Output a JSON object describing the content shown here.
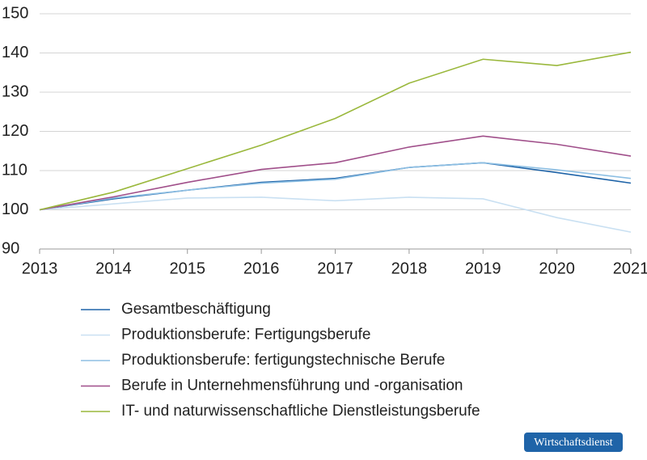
{
  "chart_data": {
    "type": "line",
    "x": [
      2013,
      2014,
      2015,
      2016,
      2017,
      2018,
      2019,
      2020,
      2021
    ],
    "xlim": [
      2013,
      2021
    ],
    "xticks": [
      2013,
      2014,
      2015,
      2016,
      2017,
      2018,
      2019,
      2020,
      2021
    ],
    "ylim": [
      90,
      150
    ],
    "yticks": [
      90,
      100,
      110,
      120,
      130,
      140,
      150
    ],
    "grid": true,
    "series": [
      {
        "name": "Gesamtbeschäftigung",
        "color": "#1f64a8",
        "values": [
          100,
          102.8,
          105,
          107,
          108,
          110.8,
          112,
          109.5,
          106.8
        ]
      },
      {
        "name": "Produktionsberufe: Fertigungsberufe",
        "color": "#c9e0f2",
        "values": [
          100,
          101.5,
          103,
          103.2,
          102.3,
          103.2,
          102.8,
          98,
          94.3
        ]
      },
      {
        "name": "Produktionsberufe: fertigungstechnische Berufe",
        "color": "#8dbfe3",
        "values": [
          100,
          103,
          105,
          106.8,
          107.8,
          110.8,
          112,
          110.2,
          108
        ]
      },
      {
        "name": "Berufe in Unternehmensführung und -organisation",
        "color": "#a04f8a",
        "values": [
          100,
          103.3,
          107,
          110.3,
          112,
          116,
          118.8,
          116.7,
          113.7
        ]
      },
      {
        "name": "IT- und naturwissenschaftliche Dienstleistungsberufe",
        "color": "#9ab83c",
        "values": [
          100,
          104.5,
          110.5,
          116.5,
          123.3,
          132.3,
          138.4,
          136.8,
          140.2
        ]
      }
    ],
    "source_badge": "Wirtschaftsdienst"
  }
}
